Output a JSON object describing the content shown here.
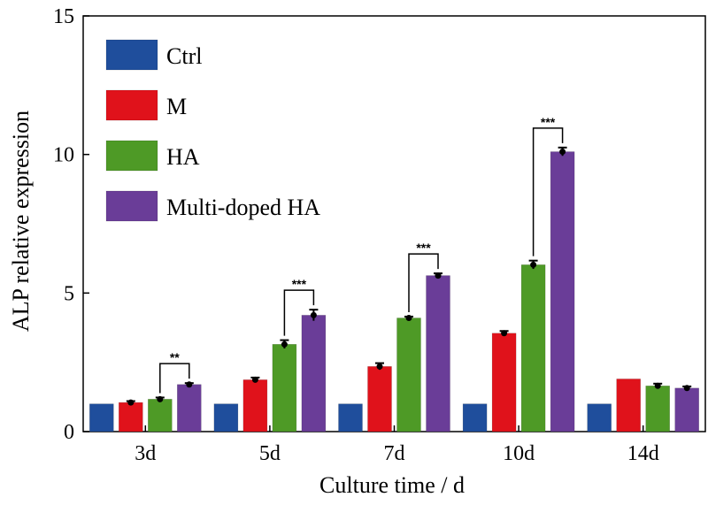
{
  "chart_data": {
    "type": "bar",
    "xlabel": "Culture time / d",
    "ylabel": "ALP relative expression",
    "ylim": [
      0,
      15
    ],
    "yticks": [
      0,
      5,
      10,
      15
    ],
    "categories": [
      "3d",
      "5d",
      "7d",
      "10d",
      "14d"
    ],
    "series": [
      {
        "name": "Ctrl",
        "color": "#1f4e9c",
        "values": [
          1.0,
          1.0,
          1.0,
          1.0,
          1.0
        ],
        "errors": [
          0,
          0,
          0,
          0,
          0
        ]
      },
      {
        "name": "M",
        "color": "#e0121b",
        "values": [
          1.05,
          1.87,
          2.35,
          3.55,
          1.9
        ],
        "errors": [
          0.05,
          0.08,
          0.12,
          0.08,
          0
        ]
      },
      {
        "name": "HA",
        "color": "#4e9a26",
        "values": [
          1.17,
          3.15,
          4.1,
          6.02,
          1.65
        ],
        "errors": [
          0.06,
          0.15,
          0.05,
          0.15,
          0.08
        ]
      },
      {
        "name": "Multi-doped HA",
        "color": "#6a3d98",
        "values": [
          1.7,
          4.2,
          5.63,
          10.1,
          1.57
        ],
        "errors": [
          0.05,
          0.2,
          0.08,
          0.15,
          0.06
        ]
      }
    ],
    "significance": [
      {
        "category": "3d",
        "from": "HA",
        "to": "Multi-doped HA",
        "label": "**"
      },
      {
        "category": "5d",
        "from": "HA",
        "to": "Multi-doped HA",
        "label": "***"
      },
      {
        "category": "7d",
        "from": "HA",
        "to": "Multi-doped HA",
        "label": "***"
      },
      {
        "category": "10d",
        "from": "HA",
        "to": "Multi-doped HA",
        "label": "***"
      }
    ],
    "legend_position": "top-left",
    "grid": false
  }
}
